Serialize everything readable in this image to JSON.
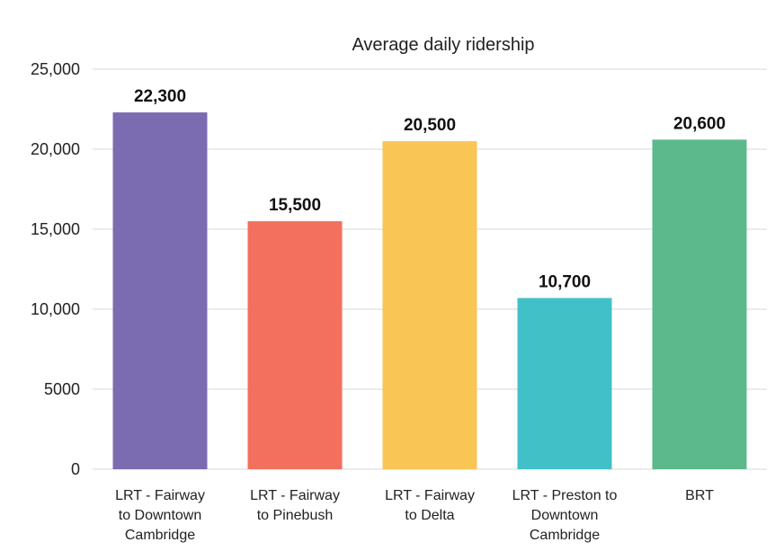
{
  "chart_data": {
    "type": "bar",
    "title": "Average daily ridership",
    "xlabel": "",
    "ylabel": "",
    "ylim": [
      0,
      25000
    ],
    "yticks": [
      0,
      5000,
      10000,
      15000,
      20000,
      25000
    ],
    "ytick_labels": [
      "0",
      "5000",
      "10,000",
      "15,000",
      "20,000",
      "25,000"
    ],
    "grid": true,
    "legend": "none",
    "categories": [
      [
        "LRT - Fairway",
        "to Downtown",
        "Cambridge"
      ],
      [
        "LRT - Fairway",
        "to Pinebush"
      ],
      [
        "LRT - Fairway",
        "to Delta"
      ],
      [
        "LRT - Preston to",
        "Downtown",
        "Cambridge"
      ],
      [
        "BRT"
      ]
    ],
    "values": [
      22300,
      15500,
      20500,
      10700,
      20600
    ],
    "data_labels": [
      "22,300",
      "15,500",
      "20,500",
      "10,700",
      "20,600"
    ],
    "colors": [
      "#7B6BB0",
      "#F36F5E",
      "#F9C555",
      "#41C1C7",
      "#5CB98B"
    ]
  }
}
